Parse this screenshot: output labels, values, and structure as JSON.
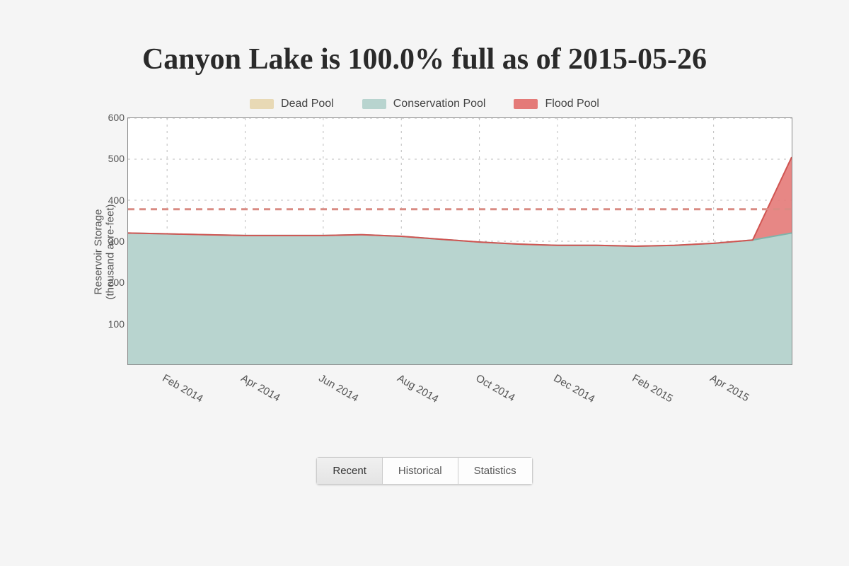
{
  "title": "Canyon Lake is 100.0% full as of 2015-05-26",
  "legend": {
    "dead_pool": "Dead Pool",
    "conservation_pool": "Conservation Pool",
    "flood_pool": "Flood Pool"
  },
  "chart": {
    "type": "area",
    "ylabel_line1": "Reservoir Storage",
    "ylabel_line2": "(thousand acre-feet)",
    "ylim": [
      0,
      600
    ],
    "yticks": [
      100,
      200,
      300,
      400,
      500,
      600
    ],
    "x_categories": [
      "Feb 2014",
      "Apr 2014",
      "Jun 2014",
      "Aug 2014",
      "Oct 2014",
      "Dec 2014",
      "Feb 2015",
      "Apr 2015"
    ],
    "x_range_months": 17,
    "threshold_value": 378,
    "threshold_color": "#d98b83",
    "threshold_dash": "9 7",
    "grid_color": "#bdbdbd",
    "border_color": "#888888",
    "background_color": "#ffffff",
    "series": {
      "dead_pool": {
        "color": "#e8d9b5",
        "values": [
          0,
          0,
          0,
          0,
          0,
          0,
          0,
          0,
          0,
          0,
          0,
          0,
          0,
          0,
          0,
          0,
          0,
          0
        ]
      },
      "conservation_pool": {
        "color": "#b8d4cf",
        "stroke": "#7fb3aa",
        "values": [
          320,
          318,
          316,
          314,
          314,
          314,
          316,
          312,
          305,
          298,
          293,
          290,
          290,
          288,
          290,
          295,
          303,
          320
        ]
      },
      "flood_pool": {
        "color": "#e47a78",
        "stroke": "#d05552",
        "values": [
          320,
          318,
          316,
          314,
          314,
          314,
          316,
          312,
          305,
          298,
          293,
          290,
          290,
          288,
          290,
          295,
          303,
          505
        ]
      }
    },
    "tick_fontsize": 14,
    "label_fontsize": 15,
    "title_fontsize": 42
  },
  "tabs": {
    "items": [
      "Recent",
      "Historical",
      "Statistics"
    ],
    "active_index": 0
  }
}
